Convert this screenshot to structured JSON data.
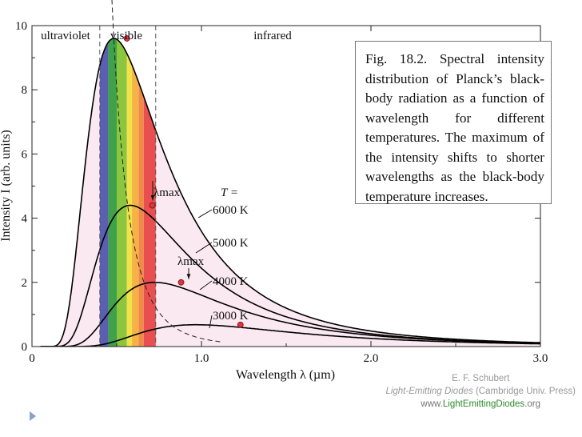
{
  "chart_data": {
    "type": "line",
    "xlabel": "Wavelength λ (µm)",
    "ylabel": "Intensity I (arb. units)",
    "xlim": [
      0,
      3.0
    ],
    "ylim": [
      0,
      10
    ],
    "x_ticks": [
      "0",
      "1.0",
      "2.0",
      "3.0"
    ],
    "y_ticks": [
      "0",
      "2",
      "4",
      "6",
      "8",
      "10"
    ],
    "regions": [
      {
        "label": "ultraviolet",
        "x_range": [
          0,
          0.4
        ]
      },
      {
        "label": "visible",
        "x_range": [
          0.4,
          0.73
        ]
      },
      {
        "label": "infrared",
        "x_range": [
          0.73,
          3.0
        ]
      }
    ],
    "visible_bands": [
      {
        "x": [
          0.4,
          0.45
        ],
        "color": "#5b5fb0"
      },
      {
        "x": [
          0.45,
          0.5
        ],
        "color": "#3fa14a"
      },
      {
        "x": [
          0.5,
          0.56
        ],
        "color": "#8cc63f"
      },
      {
        "x": [
          0.56,
          0.59
        ],
        "color": "#f2e24a"
      },
      {
        "x": [
          0.59,
          0.63
        ],
        "color": "#f6b246"
      },
      {
        "x": [
          0.63,
          0.66
        ],
        "color": "#f08a4b"
      },
      {
        "x": [
          0.66,
          0.73
        ],
        "color": "#e94f4f"
      }
    ],
    "series": [
      {
        "name": "6000 K",
        "temperature": 6000,
        "peak_x": 0.56,
        "peak_y": 9.6
      },
      {
        "name": "5000 K",
        "temperature": 5000,
        "peak_x": 0.71,
        "peak_y": 4.4
      },
      {
        "name": "4000 K",
        "temperature": 4000,
        "peak_x": 0.88,
        "peak_y": 2.0
      },
      {
        "name": "3000 K",
        "temperature": 3000,
        "peak_x": 1.23,
        "peak_y": 0.68
      }
    ],
    "temperature_label": "T =",
    "lambda_max_label": "λmax",
    "fill_color": "#fbe9f1",
    "line_color": "#000000",
    "peak_marker_color": "#d9363e"
  },
  "caption": "Fig. 18.2. Spectral intensity distribution of Planck’s black-body radiation as a function of wavelength for different temperatures. The maximum of the intensity shifts to shorter wavelengths as the black-body temperature increases.",
  "credits": {
    "author": "E. F. Schubert",
    "book": "Light-Emitting Diodes",
    "publisher": "(Cambridge Univ. Press)",
    "url_prefix": "www.",
    "url_green": "LightEmittingDiodes",
    "url_suffix": ".org"
  }
}
